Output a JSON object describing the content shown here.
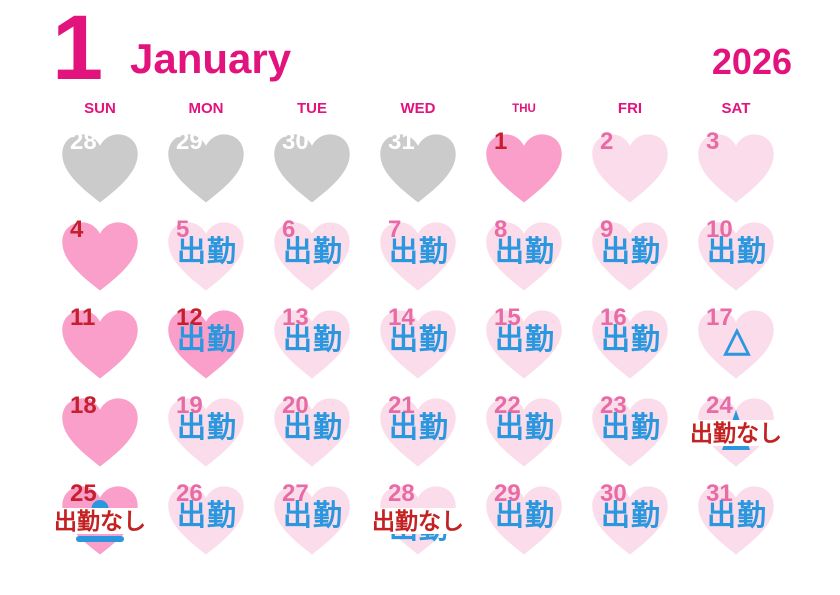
{
  "header": {
    "month_number": "1",
    "month_name": "January",
    "year": "2026"
  },
  "weekdays": [
    "SUN",
    "MON",
    "TUE",
    "WED",
    "THU",
    "FRI",
    "SAT"
  ],
  "labels": {
    "work": "出勤",
    "no_work": "出勤なし",
    "triangle": "△"
  },
  "colors": {
    "accent_pink": "#E3137E",
    "heart_gray": "#CBCBCB",
    "heart_hot_pink": "#F99FC9",
    "heart_light_pink": "#FBDCEA",
    "work_blue": "#2B97DE",
    "no_work_red": "#C42222",
    "number_red": "#C6202F",
    "number_pink": "#E76BA4",
    "number_white": "#FFFFFF"
  },
  "days": [
    {
      "date": "28",
      "heart": "gray",
      "number_color": "white",
      "mark": "none"
    },
    {
      "date": "29",
      "heart": "gray",
      "number_color": "white",
      "mark": "none"
    },
    {
      "date": "30",
      "heart": "gray",
      "number_color": "white",
      "mark": "none"
    },
    {
      "date": "31",
      "heart": "gray",
      "number_color": "white",
      "mark": "none"
    },
    {
      "date": "1",
      "heart": "hot",
      "number_color": "red",
      "mark": "none"
    },
    {
      "date": "2",
      "heart": "light",
      "number_color": "pink",
      "mark": "none"
    },
    {
      "date": "3",
      "heart": "light",
      "number_color": "pink",
      "mark": "none"
    },
    {
      "date": "4",
      "heart": "hot",
      "number_color": "red",
      "mark": "none"
    },
    {
      "date": "5",
      "heart": "light",
      "number_color": "pink",
      "mark": "work"
    },
    {
      "date": "6",
      "heart": "light",
      "number_color": "pink",
      "mark": "work"
    },
    {
      "date": "7",
      "heart": "light",
      "number_color": "pink",
      "mark": "work"
    },
    {
      "date": "8",
      "heart": "light",
      "number_color": "pink",
      "mark": "work"
    },
    {
      "date": "9",
      "heart": "light",
      "number_color": "pink",
      "mark": "work"
    },
    {
      "date": "10",
      "heart": "light",
      "number_color": "pink",
      "mark": "work"
    },
    {
      "date": "11",
      "heart": "hot",
      "number_color": "red",
      "mark": "none"
    },
    {
      "date": "12",
      "heart": "hot",
      "number_color": "red",
      "mark": "work"
    },
    {
      "date": "13",
      "heart": "light",
      "number_color": "pink",
      "mark": "work"
    },
    {
      "date": "14",
      "heart": "light",
      "number_color": "pink",
      "mark": "work"
    },
    {
      "date": "15",
      "heart": "light",
      "number_color": "pink",
      "mark": "work"
    },
    {
      "date": "16",
      "heart": "light",
      "number_color": "pink",
      "mark": "work"
    },
    {
      "date": "17",
      "heart": "light",
      "number_color": "pink",
      "mark": "triangle"
    },
    {
      "date": "18",
      "heart": "hot",
      "number_color": "red",
      "mark": "none"
    },
    {
      "date": "19",
      "heart": "light",
      "number_color": "pink",
      "mark": "work"
    },
    {
      "date": "20",
      "heart": "light",
      "number_color": "pink",
      "mark": "work"
    },
    {
      "date": "21",
      "heart": "light",
      "number_color": "pink",
      "mark": "work"
    },
    {
      "date": "22",
      "heart": "light",
      "number_color": "pink",
      "mark": "work"
    },
    {
      "date": "23",
      "heart": "light",
      "number_color": "pink",
      "mark": "work"
    },
    {
      "date": "24",
      "heart": "light",
      "number_color": "pink",
      "mark": "nowork",
      "behind": "triangle"
    },
    {
      "date": "25",
      "heart": "hot",
      "number_color": "red",
      "mark": "nowork",
      "behind": "bump-bar"
    },
    {
      "date": "26",
      "heart": "light",
      "number_color": "pink",
      "mark": "work"
    },
    {
      "date": "27",
      "heart": "light",
      "number_color": "pink",
      "mark": "work"
    },
    {
      "date": "28",
      "heart": "light",
      "number_color": "pink",
      "mark": "nowork",
      "behind": "work"
    },
    {
      "date": "29",
      "heart": "light",
      "number_color": "pink",
      "mark": "work"
    },
    {
      "date": "30",
      "heart": "light",
      "number_color": "pink",
      "mark": "work"
    },
    {
      "date": "31",
      "heart": "light",
      "number_color": "pink",
      "mark": "work"
    }
  ]
}
